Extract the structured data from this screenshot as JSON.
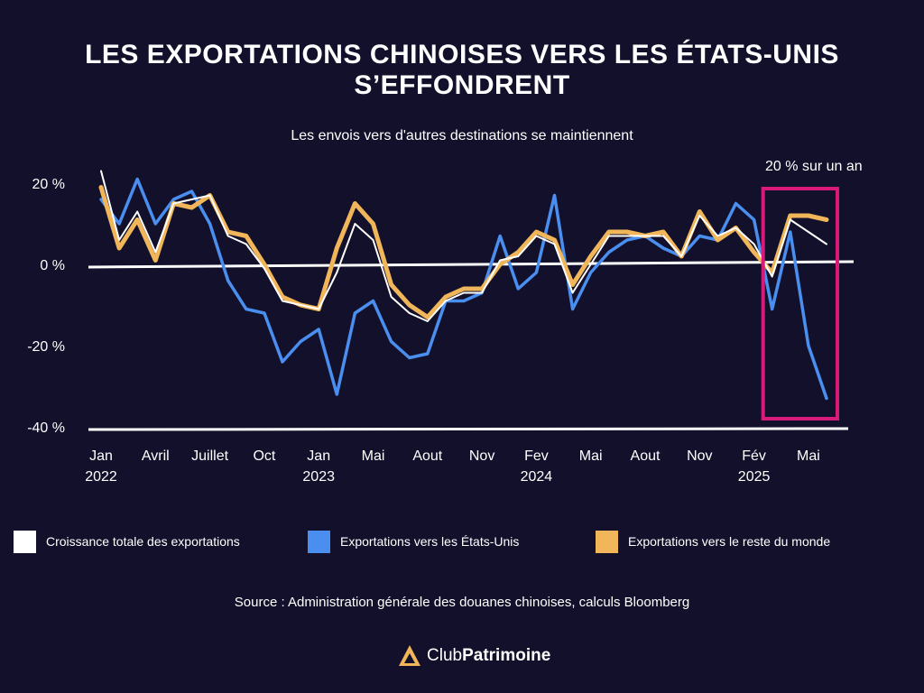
{
  "page": {
    "title_line1": "LES EXPORTATIONS CHINOISES VERS LES ÉTATS-UNIS",
    "title_line2": "S’EFFONDRENT",
    "subtitle": "Les envois vers d'autres destinations se maintiennent",
    "annotation": "20 % sur un an",
    "source": "Source : Administration générale des douanes chinoises, calculs Bloomberg",
    "brand_part1": "Club",
    "brand_part2": "Patrimoine",
    "colors": {
      "background": "#12102a",
      "total": "#ffffff",
      "us": "#4a8ff0",
      "rest": "#f0b659",
      "highlight": "#d81b7a"
    }
  },
  "chart_data": {
    "type": "line",
    "title": "LES EXPORTATIONS CHINOISES VERS LES ÉTATS-UNIS S’EFFONDRENT",
    "subtitle": "Les envois vers d'autres destinations se maintiennent",
    "ylim": [
      -40,
      25
    ],
    "yticks": [
      20,
      0,
      -20,
      -40
    ],
    "ytick_labels": [
      "20 %",
      "0 %",
      "-20 %",
      "-40 %"
    ],
    "x_start": "Jan 2022",
    "x_end": "Mai 2025",
    "xticks": [
      {
        "index": 0,
        "line1": "Jan",
        "line2": "2022"
      },
      {
        "index": 3,
        "line1": "Avril",
        "line2": ""
      },
      {
        "index": 6,
        "line1": "Juillet",
        "line2": ""
      },
      {
        "index": 9,
        "line1": "Oct",
        "line2": ""
      },
      {
        "index": 12,
        "line1": "Jan",
        "line2": "2023"
      },
      {
        "index": 15,
        "line1": "Mai",
        "line2": ""
      },
      {
        "index": 18,
        "line1": "Aout",
        "line2": ""
      },
      {
        "index": 21,
        "line1": "Nov",
        "line2": ""
      },
      {
        "index": 24,
        "line1": "Fev",
        "line2": "2024"
      },
      {
        "index": 27,
        "line1": "Mai",
        "line2": ""
      },
      {
        "index": 30,
        "line1": "Aout",
        "line2": ""
      },
      {
        "index": 33,
        "line1": "Nov",
        "line2": ""
      },
      {
        "index": 36,
        "line1": "Fév",
        "line2": "2025"
      },
      {
        "index": 39,
        "line1": "Mai",
        "line2": ""
      }
    ],
    "series": [
      {
        "name": "Croissance totale des exportations",
        "color": "#ffffff",
        "values": [
          23,
          6,
          13,
          3,
          15,
          16,
          17,
          7,
          5,
          -1,
          -9,
          -10,
          -11,
          -2,
          10,
          6,
          -8,
          -12,
          -14,
          -9,
          -7,
          -7,
          1,
          2,
          7,
          5,
          -7,
          0,
          7,
          7,
          7,
          7,
          2,
          12,
          7,
          9,
          5,
          -3,
          11,
          8,
          5
        ]
      },
      {
        "name": "Exportations vers les États-Unis",
        "color": "#4a8ff0",
        "values": [
          16,
          10,
          21,
          10,
          16,
          18,
          10,
          -4,
          -11,
          -12,
          -24,
          -19,
          -16,
          -32,
          -12,
          -9,
          -19,
          -23,
          -22,
          -9,
          -9,
          -7,
          7,
          -6,
          -2,
          17,
          -11,
          -2,
          3,
          6,
          7,
          4,
          2,
          7,
          6,
          15,
          11,
          -11,
          8,
          -20,
          -33
        ]
      },
      {
        "name": "Exportations vers le reste du monde",
        "color": "#f0b659",
        "values": [
          19,
          4,
          11,
          1,
          15,
          14,
          17,
          8,
          7,
          0,
          -8,
          -10,
          -11,
          4,
          15,
          10,
          -5,
          -10,
          -13,
          -8,
          -6,
          -6,
          0,
          3,
          8,
          6,
          -5,
          2,
          8,
          8,
          7,
          8,
          2,
          13,
          6,
          9,
          3,
          -2,
          12,
          12,
          11
        ]
      }
    ],
    "highlight": {
      "from_index": 37,
      "to_index": 40,
      "label": "20 % sur un an"
    },
    "legend": [
      {
        "label": "Croissance totale des exportations",
        "color": "#ffffff"
      },
      {
        "label": "Exportations vers les États-Unis",
        "color": "#4a8ff0"
      },
      {
        "label": "Exportations vers le reste du monde",
        "color": "#f0b659"
      }
    ],
    "legend_position": "bottom",
    "grid": false
  }
}
